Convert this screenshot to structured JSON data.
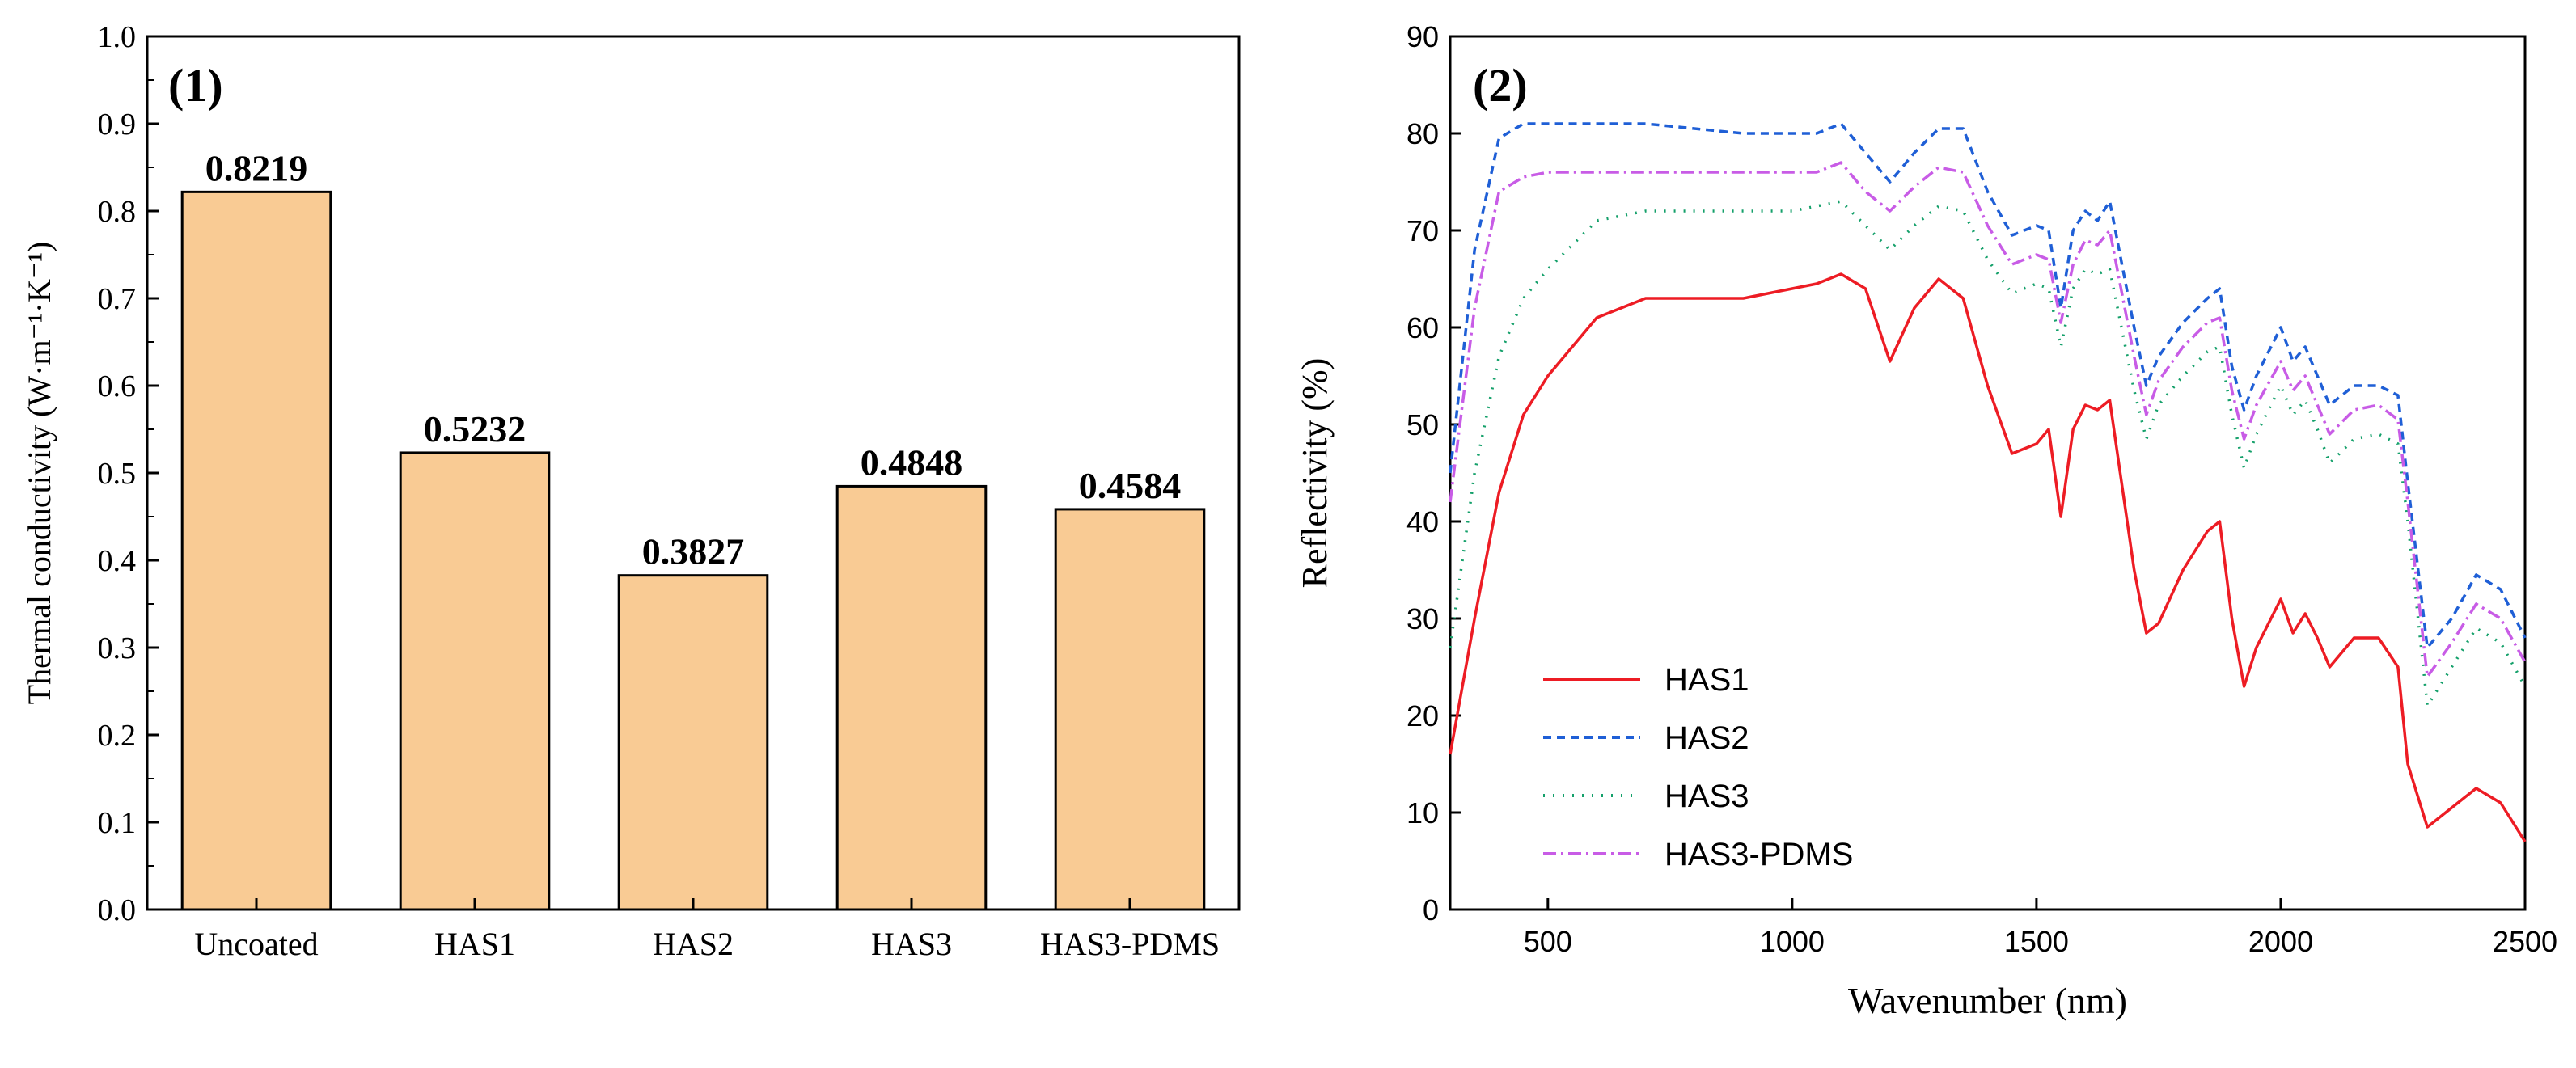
{
  "chart_data": [
    {
      "type": "bar",
      "panel_label": "(1)",
      "categories": [
        "Uncoated",
        "HAS1",
        "HAS2",
        "HAS3",
        "HAS3-PDMS"
      ],
      "values": [
        0.8219,
        0.5232,
        0.3827,
        0.4848,
        0.4584
      ],
      "value_labels": [
        "0.8219",
        "0.5232",
        "0.3827",
        "0.4848",
        "0.4584"
      ],
      "ylabel": "Thermal conductivity (W·m⁻¹·K⁻¹)",
      "ylim": [
        0,
        1.0
      ],
      "yticks": [
        "0.0",
        "0.1",
        "0.2",
        "0.3",
        "0.4",
        "0.5",
        "0.6",
        "0.7",
        "0.8",
        "0.9",
        "1.0"
      ],
      "bar_color": "#F9CB94",
      "grid": false
    },
    {
      "type": "line",
      "panel_label": "(2)",
      "xlabel": "Wavenumber (nm)",
      "ylabel": "Reflectivity (%)",
      "xlim": [
        300,
        2500
      ],
      "ylim": [
        0,
        90
      ],
      "xticks": [
        "500",
        "1000",
        "1500",
        "2000",
        "2500"
      ],
      "yticks": [
        "0",
        "10",
        "20",
        "30",
        "40",
        "50",
        "60",
        "70",
        "80",
        "90"
      ],
      "legend_position": "bottom-left",
      "grid": false,
      "x": [
        300,
        350,
        400,
        450,
        500,
        600,
        700,
        800,
        900,
        1000,
        1050,
        1100,
        1150,
        1200,
        1250,
        1300,
        1350,
        1400,
        1450,
        1500,
        1525,
        1550,
        1575,
        1600,
        1625,
        1650,
        1700,
        1725,
        1750,
        1800,
        1850,
        1875,
        1900,
        1925,
        1950,
        2000,
        2025,
        2050,
        2075,
        2100,
        2150,
        2200,
        2240,
        2260,
        2300,
        2350,
        2400,
        2450,
        2500
      ],
      "series": [
        {
          "name": "HAS1",
          "color": "#ED1C24",
          "dash": "solid",
          "values": [
            16,
            30,
            43,
            51,
            55,
            61,
            63,
            63,
            63,
            64,
            64.5,
            65.5,
            64,
            56.5,
            62,
            65,
            63,
            54,
            47,
            48,
            49.5,
            40.5,
            49.5,
            52,
            51.5,
            52.5,
            35,
            28.5,
            29.5,
            35,
            39,
            40,
            30,
            23,
            27,
            32,
            28.5,
            30.5,
            28,
            25,
            28,
            28,
            25,
            15,
            8.5,
            10.5,
            12.5,
            11,
            7
          ]
        },
        {
          "name": "HAS2",
          "color": "#1F5FD6",
          "dash": "10,7",
          "values": [
            45,
            68,
            79.5,
            81,
            81,
            81,
            81,
            80.5,
            80,
            80,
            80,
            81,
            78,
            75,
            78,
            80.5,
            80.5,
            74,
            69.5,
            70.5,
            70,
            62,
            70,
            72,
            71,
            73,
            60,
            54,
            57,
            60.5,
            63,
            64,
            56,
            51.5,
            55,
            60,
            56.5,
            58,
            55,
            52,
            54,
            54,
            53,
            44,
            27,
            30,
            34.5,
            33,
            28
          ]
        },
        {
          "name": "HAS3",
          "color": "#14A06A",
          "dash": "2,10",
          "values": [
            27,
            45,
            57,
            63,
            66,
            71,
            72,
            72,
            72,
            72,
            72.5,
            73,
            70.5,
            68,
            70.5,
            72.5,
            72,
            67,
            63.5,
            64.5,
            64,
            58,
            64,
            66,
            65.5,
            66,
            53.5,
            48.5,
            52,
            55,
            57.5,
            58,
            51,
            45.5,
            49,
            54,
            51,
            52.5,
            49.5,
            46,
            48.5,
            49,
            48,
            40,
            21,
            25,
            29,
            27.5,
            23
          ]
        },
        {
          "name": "HAS3-PDMS",
          "color": "#C85CE6",
          "dash": "16,6,3,6",
          "values": [
            42,
            62,
            74,
            75.5,
            76,
            76,
            76,
            76,
            76,
            76,
            76,
            77,
            74,
            72,
            74.5,
            76.5,
            76,
            70.5,
            66.5,
            67.5,
            67,
            60.5,
            66.5,
            69,
            68.5,
            70,
            57,
            51,
            54.5,
            58,
            60.5,
            61,
            53.5,
            48.5,
            52,
            56.5,
            53.5,
            55,
            52,
            49,
            51.5,
            52,
            50.5,
            42,
            24,
            27.5,
            31.5,
            30,
            25.5
          ]
        }
      ]
    }
  ]
}
